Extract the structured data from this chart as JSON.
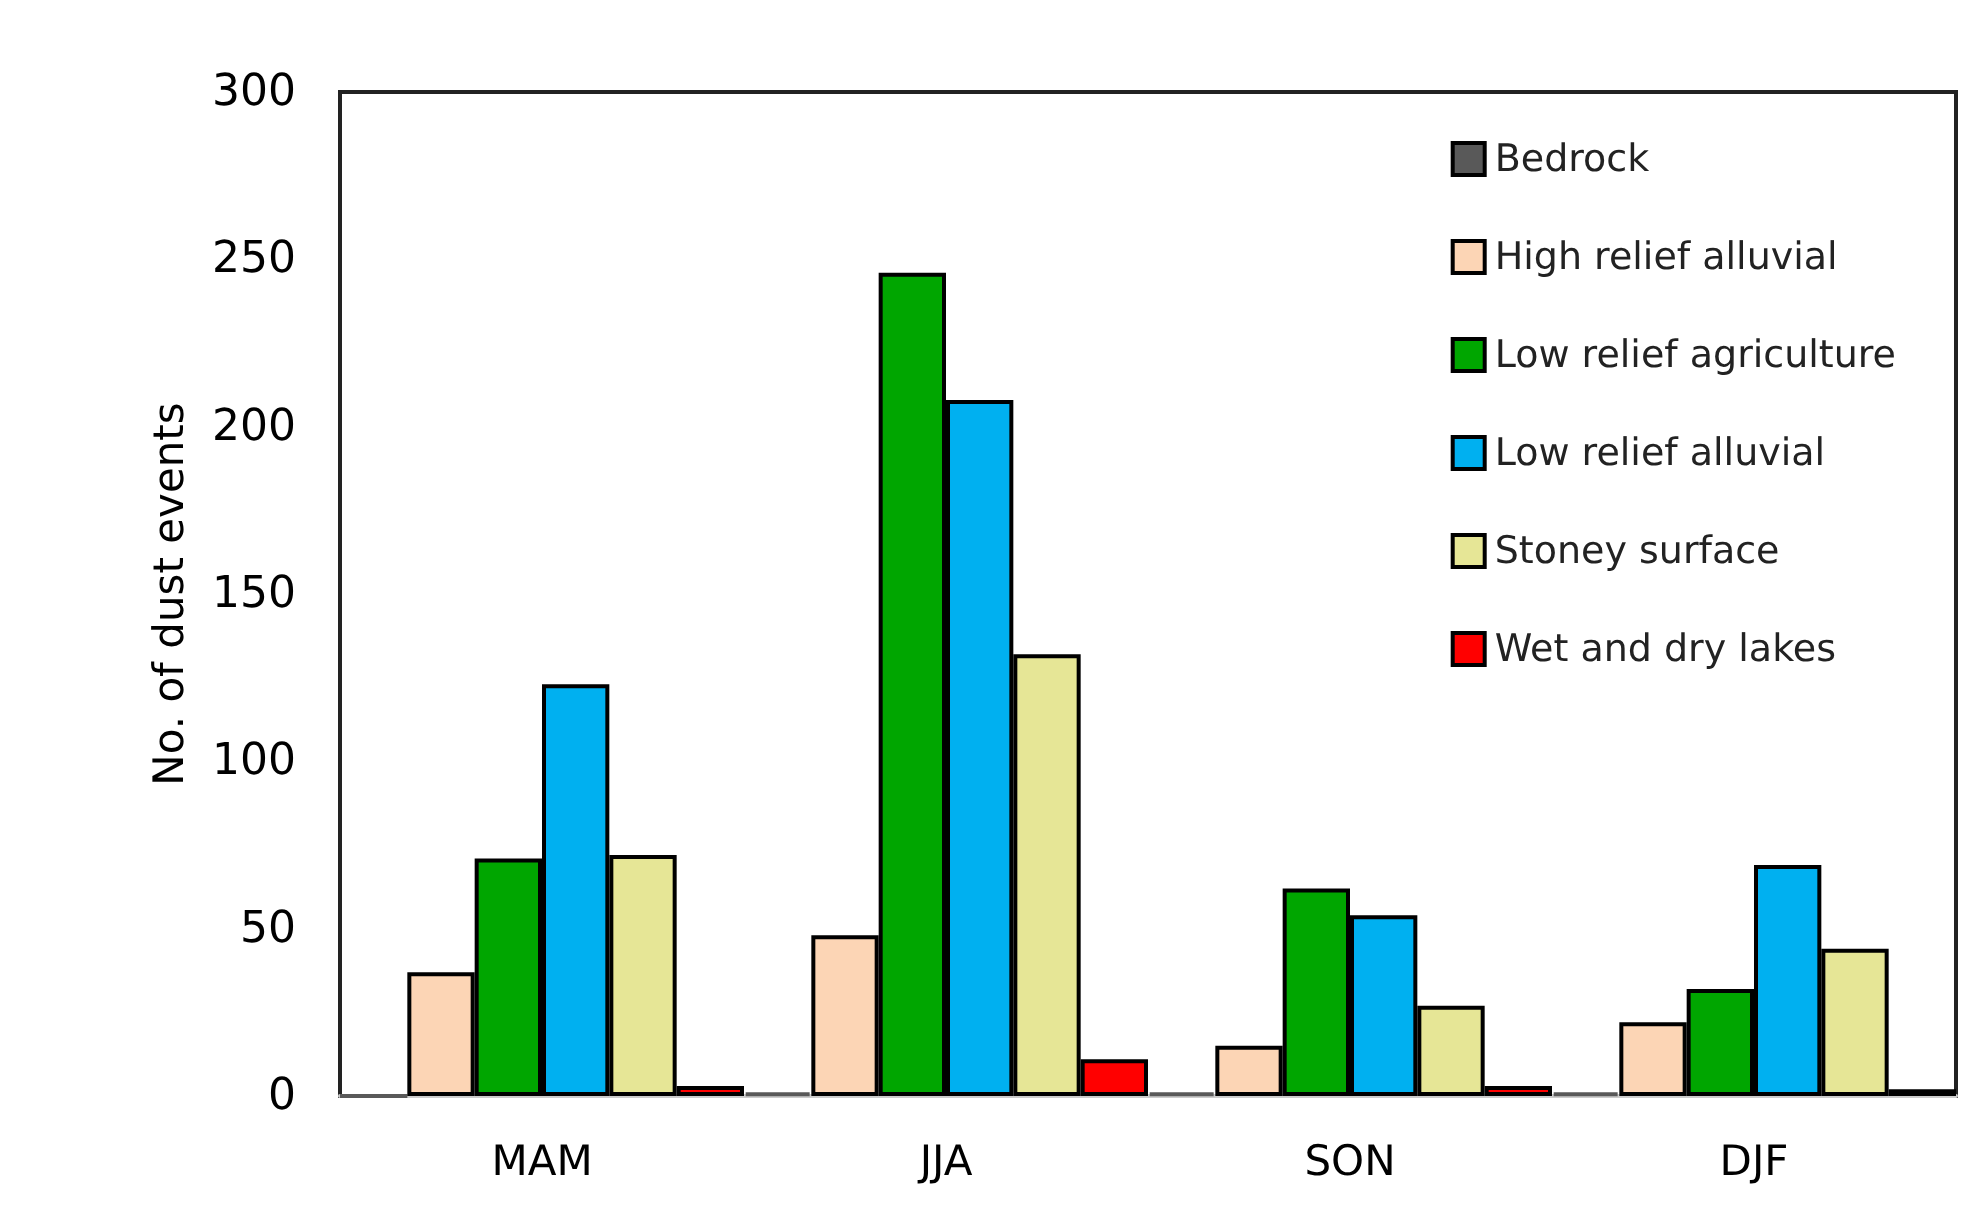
{
  "chart_data": {
    "type": "bar",
    "ylabel": "No. of dust events",
    "categories": [
      "MAM",
      "JJA",
      "SON",
      "DJF"
    ],
    "series": [
      {
        "name": "Bedrock",
        "color": "#595959",
        "values": [
          0,
          1,
          1,
          1
        ]
      },
      {
        "name": "High relief alluvial",
        "color": "#fcd5b5",
        "values": [
          37,
          48,
          15,
          22
        ]
      },
      {
        "name": "Low relief agriculture",
        "color": "#00a600",
        "values": [
          71,
          246,
          62,
          32
        ]
      },
      {
        "name": "Low relief alluvial",
        "color": "#00b0f0",
        "values": [
          123,
          208,
          54,
          69
        ]
      },
      {
        "name": "Stoney surface",
        "color": "#e6e696",
        "values": [
          72,
          132,
          27,
          44
        ]
      },
      {
        "name": "Wet and dry lakes",
        "color": "#ff0000",
        "values": [
          3,
          11,
          3,
          2
        ]
      }
    ],
    "ylim": [
      0,
      300
    ],
    "yticks": [
      0,
      50,
      100,
      150,
      200,
      250,
      300
    ],
    "grid": false,
    "legend": "top right"
  }
}
